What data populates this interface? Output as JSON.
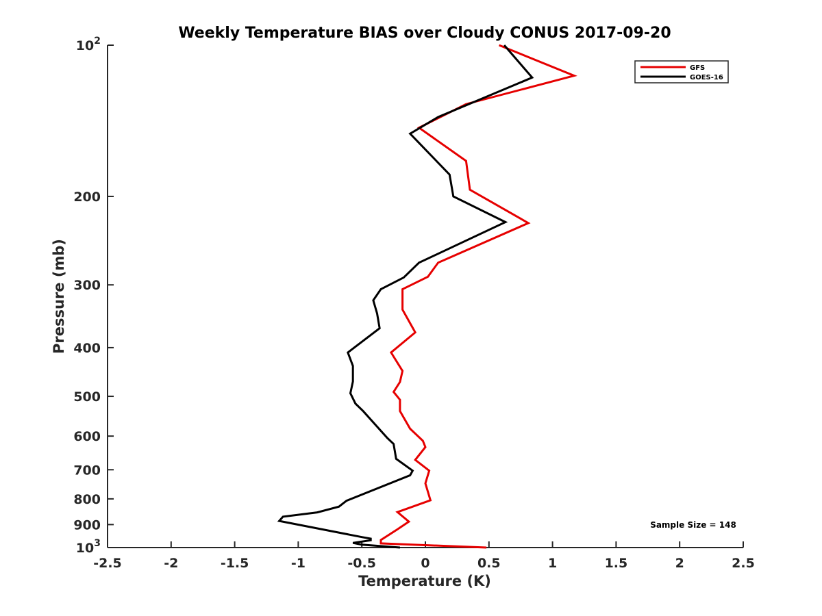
{
  "chart_data": {
    "type": "line",
    "title": "Weekly Temperature BIAS over Cloudy CONUS 2017-09-20",
    "xlabel": "Temperature (K)",
    "ylabel": "Pressure (mb)",
    "xlim": [
      -2.5,
      2.5
    ],
    "ylim": [
      1000,
      100
    ],
    "y_scale": "log",
    "y_reversed": true,
    "x_ticks": [
      -2.5,
      -2,
      -1.5,
      -1,
      -0.5,
      0,
      0.5,
      1,
      1.5,
      2,
      2.5
    ],
    "x_tick_labels": [
      "-2.5",
      "-2",
      "-1.5",
      "-1",
      "-0.5",
      "0",
      "0.5",
      "1",
      "1.5",
      "2",
      "2.5"
    ],
    "y_ticks": [
      {
        "value": 100,
        "base": "10",
        "exp": "2"
      },
      {
        "value": 200,
        "label": "200"
      },
      {
        "value": 300,
        "label": "300"
      },
      {
        "value": 400,
        "label": "400"
      },
      {
        "value": 500,
        "label": "500"
      },
      {
        "value": 600,
        "label": "600"
      },
      {
        "value": 700,
        "label": "700"
      },
      {
        "value": 800,
        "label": "800"
      },
      {
        "value": 900,
        "label": "900"
      },
      {
        "value": 1000,
        "base": "10",
        "exp": "3"
      }
    ],
    "legend_position": "top-right",
    "annotation": "Sample Size = 148",
    "series": [
      {
        "name": "GFS",
        "color": "#e60000",
        "points": [
          {
            "x": 0.58,
            "p": 100
          },
          {
            "x": 1.17,
            "p": 115
          },
          {
            "x": 0.32,
            "p": 131
          },
          {
            "x": -0.05,
            "p": 146
          },
          {
            "x": 0.32,
            "p": 170
          },
          {
            "x": 0.35,
            "p": 194
          },
          {
            "x": 0.81,
            "p": 226
          },
          {
            "x": 0.1,
            "p": 271
          },
          {
            "x": 0.02,
            "p": 289
          },
          {
            "x": -0.18,
            "p": 306
          },
          {
            "x": -0.18,
            "p": 336
          },
          {
            "x": -0.08,
            "p": 373
          },
          {
            "x": -0.27,
            "p": 409
          },
          {
            "x": -0.18,
            "p": 445
          },
          {
            "x": -0.2,
            "p": 468
          },
          {
            "x": -0.25,
            "p": 490
          },
          {
            "x": -0.2,
            "p": 508
          },
          {
            "x": -0.2,
            "p": 535
          },
          {
            "x": -0.12,
            "p": 580
          },
          {
            "x": -0.02,
            "p": 613
          },
          {
            "x": 0.0,
            "p": 631
          },
          {
            "x": -0.08,
            "p": 669
          },
          {
            "x": 0.03,
            "p": 703
          },
          {
            "x": 0.0,
            "p": 745
          },
          {
            "x": 0.04,
            "p": 805
          },
          {
            "x": -0.22,
            "p": 850
          },
          {
            "x": -0.13,
            "p": 888
          },
          {
            "x": -0.22,
            "p": 920
          },
          {
            "x": -0.35,
            "p": 966
          },
          {
            "x": -0.35,
            "p": 981
          },
          {
            "x": 0.48,
            "p": 1000
          }
        ]
      },
      {
        "name": "GOES-16",
        "color": "#000000",
        "points": [
          {
            "x": 0.62,
            "p": 100
          },
          {
            "x": 0.84,
            "p": 116
          },
          {
            "x": 0.1,
            "p": 139
          },
          {
            "x": -0.12,
            "p": 150
          },
          {
            "x": 0.19,
            "p": 181
          },
          {
            "x": 0.22,
            "p": 200
          },
          {
            "x": 0.63,
            "p": 225
          },
          {
            "x": -0.05,
            "p": 271
          },
          {
            "x": -0.17,
            "p": 290
          },
          {
            "x": -0.35,
            "p": 306
          },
          {
            "x": -0.41,
            "p": 322
          },
          {
            "x": -0.38,
            "p": 342
          },
          {
            "x": -0.36,
            "p": 366
          },
          {
            "x": -0.61,
            "p": 409
          },
          {
            "x": -0.57,
            "p": 435
          },
          {
            "x": -0.57,
            "p": 467
          },
          {
            "x": -0.59,
            "p": 493
          },
          {
            "x": -0.55,
            "p": 517
          },
          {
            "x": -0.49,
            "p": 535
          },
          {
            "x": -0.3,
            "p": 605
          },
          {
            "x": -0.25,
            "p": 622
          },
          {
            "x": -0.23,
            "p": 666
          },
          {
            "x": -0.1,
            "p": 703
          },
          {
            "x": -0.12,
            "p": 718
          },
          {
            "x": -0.62,
            "p": 807
          },
          {
            "x": -0.68,
            "p": 829
          },
          {
            "x": -0.85,
            "p": 851
          },
          {
            "x": -1.12,
            "p": 868
          },
          {
            "x": -1.15,
            "p": 885
          },
          {
            "x": -0.5,
            "p": 953
          },
          {
            "x": -0.43,
            "p": 960
          },
          {
            "x": -0.43,
            "p": 967
          },
          {
            "x": -0.57,
            "p": 979
          },
          {
            "x": -0.5,
            "p": 987
          },
          {
            "x": -0.2,
            "p": 1000
          }
        ]
      }
    ]
  }
}
